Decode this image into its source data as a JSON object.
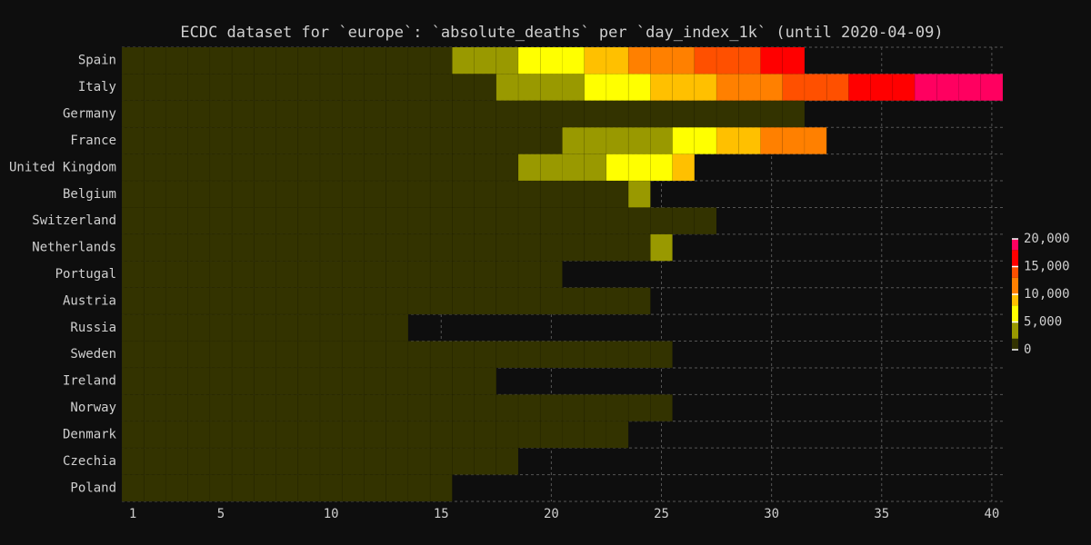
{
  "chart_data": {
    "type": "heatmap",
    "title": "ECDC dataset for `europe`: `absolute_deaths` per `day_index_1k` (until 2020-04-09)",
    "x": [
      1,
      2,
      3,
      4,
      5,
      6,
      7,
      8,
      9,
      10,
      11,
      12,
      13,
      14,
      15,
      16,
      17,
      18,
      19,
      20,
      21,
      22,
      23,
      24,
      25,
      26,
      27,
      28,
      29,
      30,
      31,
      32,
      33,
      34,
      35,
      36,
      37,
      38,
      39,
      40
    ],
    "xlim": [
      0.5,
      40.5
    ],
    "xticks": [
      1,
      5,
      10,
      15,
      20,
      25,
      30,
      35,
      40
    ],
    "grid": true,
    "series": [
      {
        "name": "Spain",
        "values": [
          3,
          5,
          10,
          17,
          28,
          35,
          54,
          55,
          133,
          195,
          289,
          342,
          533,
          623,
          1720,
          2311,
          2808,
          3647,
          5138,
          5982,
          6803,
          8189,
          9053,
          10003,
          11198,
          12418,
          13055,
          13798,
          14555,
          15238,
          15843,
          null,
          null,
          null,
          null,
          null,
          null,
          null,
          null,
          null
        ]
      },
      {
        "name": "Italy",
        "values": [
          1,
          2,
          3,
          7,
          10,
          12,
          17,
          21,
          29,
          34,
          52,
          79,
          107,
          148,
          197,
          463,
          1016,
          2158,
          2503,
          2978,
          3405,
          5476,
          6077,
          6820,
          8165,
          9134,
          9800,
          10023,
          10779,
          11591,
          13155,
          13915,
          14681,
          15362,
          15887,
          16523,
          18279,
          18849,
          19468,
          19899
        ]
      },
      {
        "name": "Germany",
        "values": [
          1,
          2,
          3,
          4,
          6,
          8,
          10,
          13,
          17,
          22,
          28,
          35,
          44,
          55,
          68,
          84,
          103,
          126,
          154,
          188,
          229,
          279,
          340,
          412,
          500,
          606,
          734,
          889,
          1076,
          1302,
          1574,
          null,
          null,
          null,
          null,
          null,
          null,
          null,
          null,
          null
        ]
      },
      {
        "name": "France",
        "values": [
          1,
          1,
          2,
          3,
          4,
          7,
          9,
          11,
          19,
          33,
          48,
          79,
          91,
          127,
          148,
          175,
          244,
          372,
          450,
          562,
          2314,
          2606,
          3024,
          3523,
          4032,
          5387,
          6507,
          8078,
          8911,
          10328,
          10869,
          12210,
          null,
          null,
          null,
          null,
          null,
          null,
          null,
          null
        ]
      },
      {
        "name": "United Kingdom",
        "values": [
          1,
          2,
          3,
          5,
          7,
          10,
          21,
          35,
          55,
          71,
          104,
          144,
          177,
          233,
          281,
          335,
          422,
          1019,
          2043,
          2352,
          2921,
          3605,
          5373,
          6159,
          7097,
          8958,
          null,
          null,
          null,
          null,
          null,
          null,
          null,
          null,
          null,
          null,
          null,
          null,
          null,
          null
        ]
      },
      {
        "name": "Belgium",
        "values": [
          0,
          0,
          0,
          0,
          1,
          2,
          3,
          4,
          5,
          10,
          14,
          21,
          37,
          67,
          75,
          88,
          122,
          178,
          220,
          289,
          353,
          431,
          513,
          2035,
          null,
          null,
          null,
          null,
          null,
          null,
          null,
          null,
          null,
          null,
          null,
          null,
          null,
          null,
          null,
          null
        ]
      },
      {
        "name": "Switzerland",
        "values": [
          1,
          1,
          2,
          3,
          4,
          7,
          11,
          13,
          14,
          14,
          27,
          28,
          41,
          54,
          56,
          80,
          98,
          120,
          161,
          192,
          231,
          264,
          300,
          359,
          433,
          488,
          536,
          null,
          null,
          null,
          null,
          null,
          null,
          null,
          null,
          null,
          null,
          null,
          null,
          null
        ]
      },
      {
        "name": "Netherlands",
        "values": [
          1,
          1,
          3,
          4,
          5,
          10,
          12,
          20,
          24,
          43,
          58,
          76,
          106,
          136,
          179,
          213,
          276,
          356,
          434,
          546,
          639,
          771,
          864,
          1039,
          2101,
          null,
          null,
          null,
          null,
          null,
          null,
          null,
          null,
          null,
          null,
          null,
          null,
          null,
          null,
          null
        ]
      },
      {
        "name": "Portugal",
        "values": [
          1,
          2,
          3,
          5,
          12,
          14,
          23,
          33,
          43,
          60,
          76,
          100,
          119,
          140,
          160,
          187,
          209,
          246,
          266,
          295,
          null,
          null,
          null,
          null,
          null,
          null,
          null,
          null,
          null,
          null,
          null,
          null,
          null,
          null,
          null,
          null,
          null,
          null,
          null,
          null
        ]
      },
      {
        "name": "Austria",
        "values": [
          1,
          1,
          3,
          3,
          4,
          6,
          6,
          8,
          16,
          21,
          28,
          30,
          49,
          58,
          68,
          86,
          108,
          128,
          146,
          158,
          168,
          186,
          204,
          243,
          null,
          null,
          null,
          null,
          null,
          null,
          null,
          null,
          null,
          null,
          null,
          null,
          null,
          null,
          null,
          null
        ]
      },
      {
        "name": "Russia",
        "values": [
          1,
          1,
          2,
          3,
          4,
          8,
          9,
          17,
          24,
          30,
          34,
          43,
          47,
          null,
          null,
          null,
          null,
          null,
          null,
          null,
          null,
          null,
          null,
          null,
          null,
          null,
          null,
          null,
          null,
          null,
          null,
          null,
          null,
          null,
          null,
          null,
          null,
          null,
          null,
          null
        ]
      },
      {
        "name": "Sweden",
        "values": [
          1,
          1,
          3,
          6,
          7,
          10,
          11,
          16,
          20,
          21,
          25,
          36,
          62,
          77,
          105,
          110,
          146,
          180,
          239,
          282,
          333,
          373,
          401,
          477,
          591,
          null,
          null,
          null,
          null,
          null,
          null,
          null,
          null,
          null,
          null,
          null,
          null,
          null,
          null,
          null
        ]
      },
      {
        "name": "Ireland",
        "values": [
          1,
          1,
          2,
          3,
          4,
          6,
          7,
          9,
          19,
          22,
          36,
          46,
          54,
          71,
          85,
          98,
          120,
          null,
          null,
          null,
          null,
          null,
          null,
          null,
          null,
          null,
          null,
          null,
          null,
          null,
          null,
          null,
          null,
          null,
          null,
          null,
          null,
          null,
          null,
          null
        ]
      },
      {
        "name": "Norway",
        "values": [
          1,
          3,
          3,
          3,
          3,
          6,
          7,
          7,
          10,
          12,
          14,
          14,
          19,
          23,
          25,
          32,
          39,
          44,
          50,
          59,
          62,
          71,
          76,
          86,
          89,
          null,
          null,
          null,
          null,
          null,
          null,
          null,
          null,
          null,
          null,
          null,
          null,
          null,
          null,
          null
        ]
      },
      {
        "name": "Denmark",
        "values": [
          1,
          2,
          4,
          4,
          6,
          9,
          13,
          13,
          24,
          32,
          34,
          41,
          52,
          65,
          72,
          77,
          90,
          104,
          123,
          139,
          161,
          179,
          187,
          null,
          null,
          null,
          null,
          null,
          null,
          null,
          null,
          null,
          null,
          null,
          null,
          null,
          null,
          null,
          null,
          null
        ]
      },
      {
        "name": "Czechia",
        "values": [
          1,
          3,
          6,
          9,
          9,
          11,
          16,
          23,
          31,
          39,
          44,
          53,
          59,
          67,
          78,
          88,
          99,
          112,
          null,
          null,
          null,
          null,
          null,
          null,
          null,
          null,
          null,
          null,
          null,
          null,
          null,
          null,
          null,
          null,
          null,
          null,
          null,
          null,
          null,
          null
        ]
      },
      {
        "name": "Poland",
        "values": [
          1,
          3,
          5,
          5,
          7,
          8,
          14,
          16,
          18,
          31,
          32,
          43,
          57,
          71,
          79,
          null,
          null,
          null,
          null,
          null,
          null,
          null,
          null,
          null,
          null,
          null,
          null,
          null,
          null,
          null,
          null,
          null,
          null,
          null,
          null,
          null,
          null,
          null,
          null,
          null
        ]
      }
    ],
    "colorscale": [
      {
        "value": 0,
        "color": "#333300"
      },
      {
        "value": 2000,
        "color": "#999900"
      },
      {
        "value": 5000,
        "color": "#ffff00"
      },
      {
        "value": 8000,
        "color": "#ffc000"
      },
      {
        "value": 10000,
        "color": "#ff8000"
      },
      {
        "value": 13000,
        "color": "#ff5000"
      },
      {
        "value": 15000,
        "color": "#ff0000"
      },
      {
        "value": 18000,
        "color": "#ff0060"
      }
    ],
    "colorbar_lim": [
      0,
      20000
    ],
    "colorbar_ticks": [
      0,
      {
        "value": 5000,
        "label": "5,000"
      },
      {
        "value": 10000,
        "label": "10,000"
      },
      {
        "value": 15000,
        "label": "15,000"
      },
      {
        "value": 20000,
        "label": "20,000"
      }
    ]
  }
}
